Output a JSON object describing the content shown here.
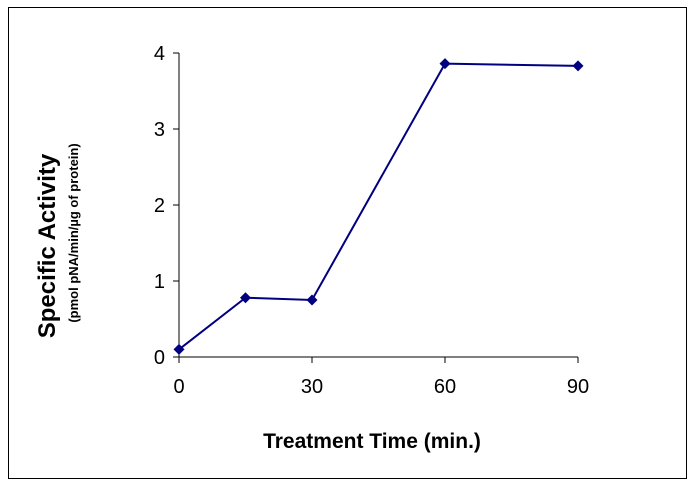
{
  "chart_data": {
    "type": "line",
    "title": "",
    "xlabel": "Treatment Time (min.)",
    "ylabel": "Specific Activity",
    "ylabel_sub": "(pmol pNA/min/µg of  protein)",
    "x": [
      0,
      15,
      30,
      60,
      90
    ],
    "xticks": [
      "0",
      "30",
      "60",
      "90"
    ],
    "xtick_values": [
      0,
      30,
      60,
      90
    ],
    "yticks": [
      "0",
      "1",
      "2",
      "3",
      "4"
    ],
    "ytick_values": [
      0,
      1,
      2,
      3,
      4
    ],
    "xlim": [
      0,
      90
    ],
    "ylim": [
      0,
      4
    ],
    "grid": false,
    "series": [
      {
        "values": [
          0.1,
          0.78,
          0.75,
          3.86,
          3.83
        ],
        "color": "#000080",
        "marker": "diamond"
      }
    ]
  }
}
